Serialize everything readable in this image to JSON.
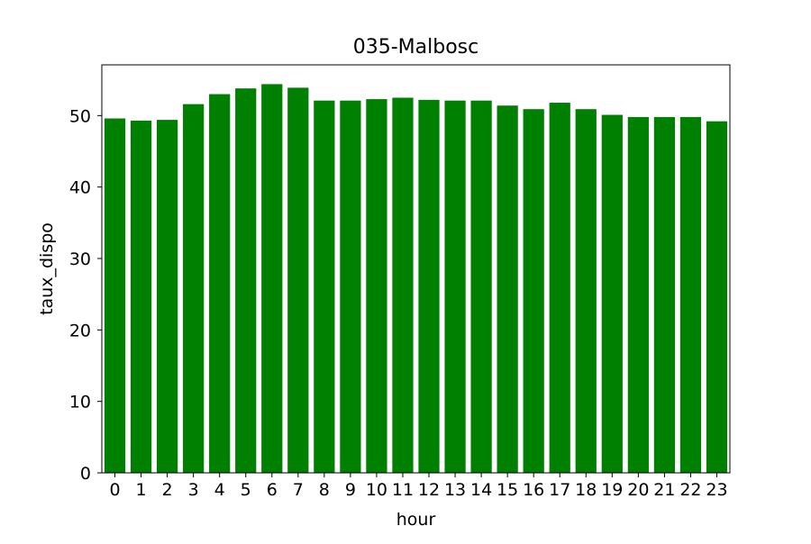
{
  "chart_data": {
    "type": "bar",
    "title": "035-Malbosc",
    "xlabel": "hour",
    "ylabel": "taux_dispo",
    "categories": [
      "0",
      "1",
      "2",
      "3",
      "4",
      "5",
      "6",
      "7",
      "8",
      "9",
      "10",
      "11",
      "12",
      "13",
      "14",
      "15",
      "16",
      "17",
      "18",
      "19",
      "20",
      "21",
      "22",
      "23"
    ],
    "values": [
      49.6,
      49.3,
      49.4,
      51.6,
      53.0,
      53.8,
      54.4,
      53.9,
      52.1,
      52.1,
      52.3,
      52.5,
      52.2,
      52.1,
      52.1,
      51.4,
      50.9,
      51.8,
      50.9,
      50.1,
      49.8,
      49.8,
      49.8,
      49.2
    ],
    "ylim": [
      0,
      57.1
    ],
    "yticks": [
      0,
      10,
      20,
      30,
      40,
      50
    ],
    "grid": false,
    "colors": {
      "bar": "#008000",
      "axes": "#000000",
      "background": "#ffffff"
    }
  }
}
